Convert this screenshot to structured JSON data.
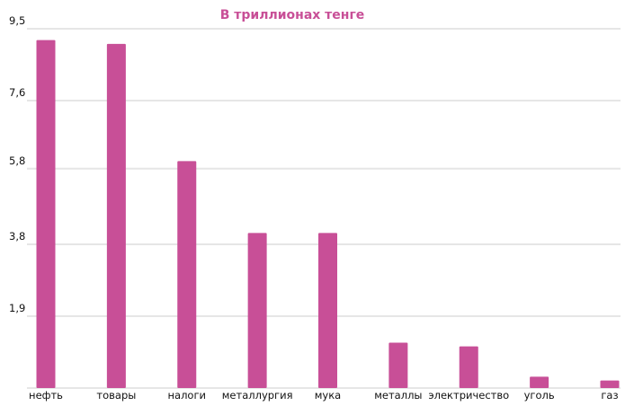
{
  "chart_data": {
    "type": "bar",
    "title": "В триллионах тенге",
    "xlabel": "",
    "ylabel": "",
    "categories": [
      "нефть",
      "товары",
      "налоги",
      "металлургия",
      "мука",
      "металлы",
      "электричество",
      "уголь",
      "газ"
    ],
    "values": [
      9.2,
      9.1,
      6.0,
      4.1,
      4.1,
      1.2,
      1.1,
      0.3,
      0.2
    ],
    "ylim": [
      0,
      9.5
    ],
    "yticks": [
      1.9,
      3.8,
      5.8,
      7.6,
      9.5
    ],
    "ytick_labels": [
      "1,9",
      "3,8",
      "5,8",
      "7,6",
      "9,5"
    ],
    "grid": true,
    "legend": "none",
    "colors": {
      "bar": "#c84f97",
      "title": "#c84f97",
      "grid": "#e6e6e6"
    }
  }
}
